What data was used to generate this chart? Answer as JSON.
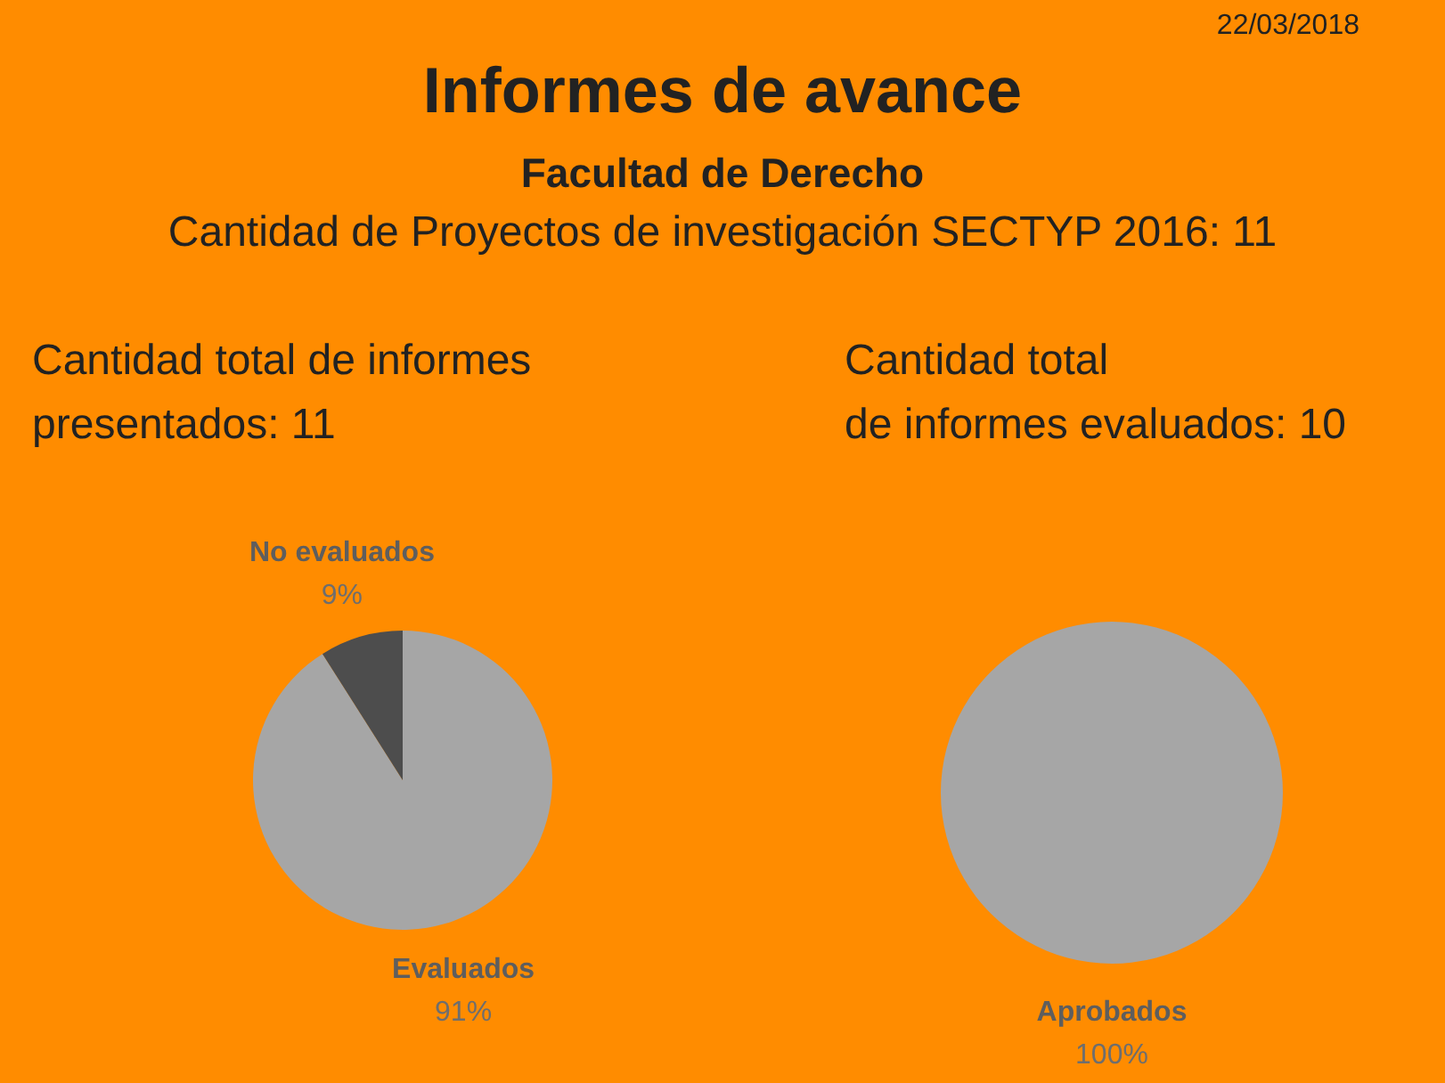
{
  "chart_data": [
    {
      "type": "other",
      "title": "Informes de avance",
      "subtitle": "Facultad de Derecho",
      "annotations": [
        "22/03/2018",
        "Cantidad de Proyectos de investigación SECTYP 2016: 11"
      ]
    },
    {
      "type": "pie",
      "title": "Cantidad total de informes\npresentados: 11",
      "categories": [
        "Evaluados",
        "No evaluados"
      ],
      "values": [
        91,
        9
      ],
      "value_labels": [
        "91%",
        "9%"
      ],
      "colors": [
        "#a6a6a6",
        "#4d4d4d"
      ]
    },
    {
      "type": "pie",
      "title": "Cantidad total\nde informes evaluados: 10",
      "categories": [
        "Aprobados"
      ],
      "values": [
        100
      ],
      "value_labels": [
        "100%"
      ],
      "colors": [
        "#a6a6a6"
      ]
    }
  ]
}
